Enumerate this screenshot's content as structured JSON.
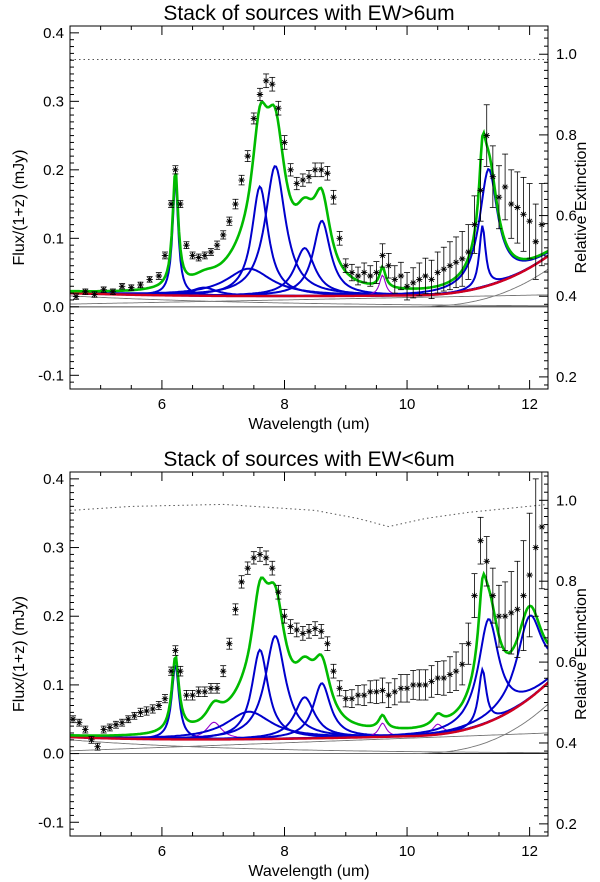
{
  "chart_data": [
    {
      "type": "line",
      "title": "Stack of sources with EW>6um",
      "xlabel": "Wavelength (um)",
      "ylabel": "Flux/(1+z) (mJy)",
      "y2label": "Relative Extinction",
      "xlim": [
        4.5,
        12.3
      ],
      "ylim": [
        -0.12,
        0.41
      ],
      "y2lim": [
        0.17,
        1.07
      ],
      "xticks": [
        6,
        8,
        10,
        12
      ],
      "xtick_labels": [
        "6",
        "8",
        "10",
        "12"
      ],
      "yticks": [
        -0.1,
        0.0,
        0.1,
        0.2,
        0.3,
        0.4
      ],
      "ytick_labels": [
        "-0.1",
        "0.0",
        "0.1",
        "0.2",
        "0.3",
        "0.4"
      ],
      "y2ticks": [
        0.2,
        0.4,
        0.6,
        0.8,
        1.0
      ],
      "y2tick_labels": [
        "0.2",
        "0.4",
        "0.6",
        "0.8",
        "1.0"
      ],
      "continuum": {
        "a": 0.016,
        "b": 0.0135,
        "x0": 4.5,
        "k": 0.3,
        "ex": 10.0,
        "pw": 2.6,
        "ek": 0.055
      },
      "features": [
        {
          "center": 6.22,
          "fwhm": 0.11,
          "amp": 0.17,
          "colors": "blue"
        },
        {
          "center": 6.69,
          "fwhm": 0.5,
          "amp": 0.012,
          "colors": "blue"
        },
        {
          "center": 7.42,
          "fwhm": 0.9,
          "amp": 0.04,
          "colors": "blue"
        },
        {
          "center": 7.6,
          "fwhm": 0.32,
          "amp": 0.16,
          "colors": "blue"
        },
        {
          "center": 7.85,
          "fwhm": 0.4,
          "amp": 0.19,
          "colors": "blue"
        },
        {
          "center": 8.33,
          "fwhm": 0.4,
          "amp": 0.07,
          "colors": "blue"
        },
        {
          "center": 8.61,
          "fwhm": 0.34,
          "amp": 0.11,
          "colors": "blue"
        },
        {
          "center": 9.6,
          "fwhm": 0.12,
          "amp": 0.03,
          "colors": "purple"
        },
        {
          "center": 11.23,
          "fwhm": 0.12,
          "amp": 0.09,
          "colors": "blue"
        },
        {
          "center": 11.33,
          "fwhm": 0.36,
          "amp": 0.17,
          "colors": "blue"
        }
      ],
      "extinction_curve": {
        "x": [
          4.5,
          12.3
        ],
        "y": [
          0.987,
          0.987
        ]
      },
      "observed": {
        "x": [
          4.6,
          4.75,
          4.9,
          5.05,
          5.2,
          5.35,
          5.5,
          5.65,
          5.8,
          5.95,
          6.05,
          6.15,
          6.22,
          6.3,
          6.4,
          6.5,
          6.6,
          6.7,
          6.8,
          6.9,
          7.0,
          7.1,
          7.2,
          7.3,
          7.4,
          7.5,
          7.6,
          7.7,
          7.8,
          7.9,
          8.0,
          8.1,
          8.2,
          8.3,
          8.4,
          8.5,
          8.6,
          8.7,
          8.8,
          8.9,
          9.0,
          9.1,
          9.2,
          9.3,
          9.4,
          9.5,
          9.6,
          9.7,
          9.8,
          9.9,
          10.0,
          10.1,
          10.2,
          10.3,
          10.4,
          10.5,
          10.6,
          10.7,
          10.8,
          10.9,
          11.0,
          11.1,
          11.2,
          11.3,
          11.4,
          11.5,
          11.6,
          11.7,
          11.8,
          11.9,
          12.0,
          12.1,
          12.2
        ],
        "y": [
          0.015,
          0.022,
          0.018,
          0.025,
          0.022,
          0.03,
          0.028,
          0.032,
          0.04,
          0.045,
          0.075,
          0.15,
          0.2,
          0.15,
          0.09,
          0.075,
          0.072,
          0.075,
          0.08,
          0.09,
          0.105,
          0.125,
          0.15,
          0.185,
          0.22,
          0.275,
          0.31,
          0.33,
          0.325,
          0.29,
          0.24,
          0.2,
          0.18,
          0.185,
          0.19,
          0.2,
          0.2,
          0.195,
          0.16,
          0.1,
          0.06,
          0.05,
          0.045,
          0.05,
          0.045,
          0.05,
          0.075,
          0.06,
          0.04,
          0.045,
          0.03,
          0.035,
          0.04,
          0.045,
          0.04,
          0.05,
          0.055,
          0.06,
          0.065,
          0.07,
          0.08,
          0.12,
          0.17,
          0.25,
          0.19,
          0.16,
          0.175,
          0.15,
          0.145,
          0.135,
          0.125,
          0.095,
          0.12
        ],
        "err": [
          0.004,
          0.004,
          0.004,
          0.004,
          0.004,
          0.004,
          0.004,
          0.004,
          0.004,
          0.005,
          0.005,
          0.005,
          0.006,
          0.005,
          0.005,
          0.005,
          0.005,
          0.005,
          0.005,
          0.006,
          0.006,
          0.006,
          0.007,
          0.007,
          0.008,
          0.008,
          0.009,
          0.01,
          0.01,
          0.01,
          0.01,
          0.009,
          0.009,
          0.009,
          0.009,
          0.01,
          0.01,
          0.01,
          0.01,
          0.01,
          0.01,
          0.012,
          0.013,
          0.014,
          0.015,
          0.016,
          0.017,
          0.018,
          0.02,
          0.02,
          0.02,
          0.022,
          0.024,
          0.026,
          0.028,
          0.03,
          0.032,
          0.035,
          0.037,
          0.04,
          0.04,
          0.042,
          0.045,
          0.045,
          0.045,
          0.046,
          0.048,
          0.05,
          0.052,
          0.054,
          0.055,
          0.055,
          0.06
        ]
      }
    },
    {
      "type": "line",
      "title": "Stack of sources with EW<6um",
      "xlabel": "Wavelength (um)",
      "ylabel": "Flux/(1+z) (mJy)",
      "y2label": "Relative Extinction",
      "xlim": [
        4.5,
        12.3
      ],
      "ylim": [
        -0.12,
        0.41
      ],
      "y2lim": [
        0.17,
        1.07
      ],
      "xticks": [
        6,
        8,
        10,
        12
      ],
      "xtick_labels": [
        "6",
        "8",
        "10",
        "12"
      ],
      "yticks": [
        -0.1,
        0.0,
        0.1,
        0.2,
        0.3,
        0.4
      ],
      "ytick_labels": [
        "-0.1",
        "0.0",
        "0.1",
        "0.2",
        "0.3",
        "0.4"
      ],
      "y2ticks": [
        0.2,
        0.4,
        0.6,
        0.8,
        1.0
      ],
      "y2tick_labels": [
        "0.2",
        "0.4",
        "0.6",
        "0.8",
        "1.0"
      ],
      "continuum": {
        "a": 0.02,
        "b": 0.026,
        "x0": 4.5,
        "k": 0.35,
        "ex": 10.0,
        "pw": 2.6,
        "ek": 0.072
      },
      "features": [
        {
          "center": 6.22,
          "fwhm": 0.14,
          "amp": 0.11,
          "colors": "blue"
        },
        {
          "center": 6.85,
          "fwhm": 0.3,
          "amp": 0.025,
          "colors": "purple"
        },
        {
          "center": 7.42,
          "fwhm": 0.9,
          "amp": 0.04,
          "colors": "blue"
        },
        {
          "center": 7.6,
          "fwhm": 0.32,
          "amp": 0.13,
          "colors": "blue"
        },
        {
          "center": 7.85,
          "fwhm": 0.4,
          "amp": 0.15,
          "colors": "blue"
        },
        {
          "center": 8.33,
          "fwhm": 0.4,
          "amp": 0.06,
          "colors": "blue"
        },
        {
          "center": 8.61,
          "fwhm": 0.34,
          "amp": 0.08,
          "colors": "blue"
        },
        {
          "center": 9.6,
          "fwhm": 0.15,
          "amp": 0.02,
          "colors": "purple"
        },
        {
          "center": 10.5,
          "fwhm": 0.2,
          "amp": 0.015,
          "colors": "purple"
        },
        {
          "center": 11.23,
          "fwhm": 0.15,
          "amp": 0.08,
          "colors": "blue"
        },
        {
          "center": 11.33,
          "fwhm": 0.4,
          "amp": 0.15,
          "colors": "blue"
        },
        {
          "center": 12.0,
          "fwhm": 0.5,
          "amp": 0.12,
          "colors": "blue"
        }
      ],
      "extinction_curve": {
        "x": [
          4.5,
          5.5,
          7.0,
          8.5,
          9.2,
          9.7,
          10.3,
          11.0,
          12.3
        ],
        "y": [
          0.975,
          0.985,
          0.99,
          0.975,
          0.955,
          0.935,
          0.955,
          0.97,
          0.99
        ]
      },
      "observed": {
        "x": [
          4.55,
          4.65,
          4.75,
          4.85,
          4.95,
          5.05,
          5.15,
          5.25,
          5.35,
          5.45,
          5.55,
          5.65,
          5.75,
          5.85,
          5.95,
          6.05,
          6.15,
          6.22,
          6.3,
          6.4,
          6.5,
          6.6,
          6.7,
          6.8,
          6.9,
          7.0,
          7.1,
          7.2,
          7.3,
          7.4,
          7.5,
          7.6,
          7.7,
          7.8,
          7.9,
          8.0,
          8.1,
          8.2,
          8.3,
          8.4,
          8.5,
          8.6,
          8.7,
          8.8,
          8.9,
          9.0,
          9.1,
          9.2,
          9.3,
          9.4,
          9.5,
          9.6,
          9.7,
          9.8,
          9.9,
          10.0,
          10.1,
          10.2,
          10.3,
          10.4,
          10.5,
          10.6,
          10.7,
          10.8,
          10.9,
          11.0,
          11.1,
          11.2,
          11.3,
          11.4,
          11.5,
          11.6,
          11.7,
          11.8,
          11.9,
          12.0,
          12.1,
          12.2
        ],
        "y": [
          0.05,
          0.045,
          0.035,
          0.02,
          0.01,
          0.035,
          0.038,
          0.042,
          0.045,
          0.05,
          0.055,
          0.06,
          0.062,
          0.065,
          0.07,
          0.08,
          0.12,
          0.15,
          0.12,
          0.085,
          0.085,
          0.09,
          0.09,
          0.095,
          0.095,
          0.12,
          0.16,
          0.21,
          0.25,
          0.27,
          0.285,
          0.29,
          0.285,
          0.27,
          0.235,
          0.2,
          0.185,
          0.18,
          0.175,
          0.178,
          0.182,
          0.178,
          0.16,
          0.12,
          0.095,
          0.08,
          0.08,
          0.085,
          0.085,
          0.09,
          0.09,
          0.092,
          0.085,
          0.09,
          0.095,
          0.095,
          0.1,
          0.1,
          0.1,
          0.105,
          0.11,
          0.11,
          0.115,
          0.12,
          0.13,
          0.16,
          0.23,
          0.31,
          0.28,
          0.23,
          0.2,
          0.2,
          0.205,
          0.21,
          0.23,
          0.26,
          0.3,
          0.33
        ],
        "err": [
          0.005,
          0.005,
          0.005,
          0.005,
          0.005,
          0.005,
          0.005,
          0.005,
          0.005,
          0.005,
          0.005,
          0.006,
          0.006,
          0.006,
          0.006,
          0.006,
          0.006,
          0.007,
          0.007,
          0.007,
          0.007,
          0.007,
          0.007,
          0.007,
          0.007,
          0.008,
          0.008,
          0.008,
          0.009,
          0.009,
          0.009,
          0.01,
          0.01,
          0.01,
          0.01,
          0.01,
          0.01,
          0.01,
          0.01,
          0.01,
          0.01,
          0.01,
          0.01,
          0.01,
          0.011,
          0.012,
          0.013,
          0.014,
          0.015,
          0.016,
          0.017,
          0.018,
          0.018,
          0.019,
          0.02,
          0.02,
          0.021,
          0.022,
          0.022,
          0.023,
          0.024,
          0.025,
          0.026,
          0.028,
          0.03,
          0.03,
          0.032,
          0.034,
          0.036,
          0.04,
          0.045,
          0.05,
          0.06,
          0.07,
          0.08,
          0.09,
          0.1,
          0.09
        ]
      }
    }
  ],
  "colors": {
    "fit_total": "#00bb00",
    "pah_feature": "#0000cc",
    "weak_feature": "#9900cc",
    "continuum_total": "#d00020",
    "continuum_component": "#777777",
    "extinction": "#555555",
    "observed": "#000000"
  }
}
